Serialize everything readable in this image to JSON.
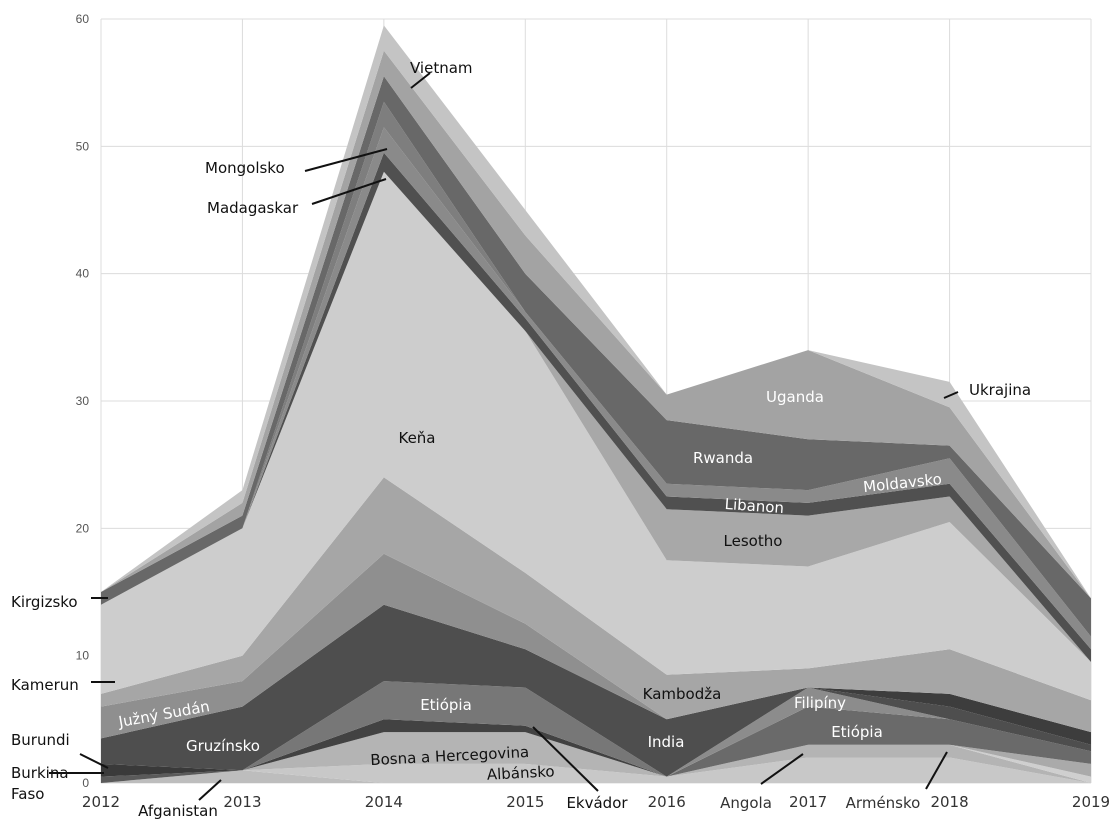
{
  "chart_data": {
    "type": "area",
    "title": "",
    "xlabel": "",
    "ylabel": "",
    "x": [
      2012,
      2013,
      2014,
      2015,
      2016,
      2017,
      2018,
      2019
    ],
    "xticks": [
      "2012",
      "2013",
      "2014",
      "2015",
      "2016",
      "2017",
      "2018",
      "2019"
    ],
    "ylim": [
      0,
      60
    ],
    "yticks": [
      "0",
      "10",
      "20",
      "30",
      "40",
      "50",
      "60"
    ],
    "grid": true,
    "legend": "none",
    "series": [
      {
        "name": "Afganistan",
        "values": [
          0,
          1,
          0,
          0,
          0,
          0,
          0,
          0
        ],
        "color": "#bdbdbd"
      },
      {
        "name": "Albánsko",
        "values": [
          0,
          0,
          1.5,
          1.5,
          0.5,
          2,
          2,
          0
        ],
        "color": "#c8c8c8"
      },
      {
        "name": "Bosna a Hercegovina",
        "values": [
          0,
          0,
          2.5,
          2.5,
          0,
          1,
          1,
          0
        ],
        "color": "#b4b4b4"
      },
      {
        "name": "Ekvádor",
        "values": [
          0,
          0,
          1,
          0.5,
          0,
          0,
          0,
          0
        ],
        "color": "#424242"
      },
      {
        "name": "Etiópia",
        "values": [
          0,
          0,
          3,
          3,
          0,
          0,
          0,
          0
        ],
        "color": "#777777"
      },
      {
        "name": "Burkina Faso",
        "values": [
          0.5,
          0,
          0,
          0,
          0,
          0,
          0,
          0
        ],
        "color": "#5a5a5a"
      },
      {
        "name": "Angola",
        "values": [
          0,
          0,
          0,
          0,
          0,
          0,
          0,
          0.5
        ],
        "color": "#cfcfcf"
      },
      {
        "name": "Arménsko",
        "values": [
          0,
          0,
          0,
          0,
          0,
          0,
          0,
          1
        ],
        "color": "#aaaaaa"
      },
      {
        "name": "Etiópia",
        "values": [
          0,
          0,
          0,
          0,
          0,
          3,
          2,
          1
        ],
        "color": "#6a6a6a"
      },
      {
        "name": "Filipíny",
        "values": [
          0,
          0,
          0,
          0,
          0,
          1.5,
          0,
          0
        ],
        "color": "#8c8c8c"
      },
      {
        "name": "Burundi",
        "values": [
          1,
          0,
          0,
          0,
          0,
          0,
          0,
          0
        ],
        "color": "#3a3a3a"
      },
      {
        "name": "Gruzínsko",
        "values": [
          2,
          5,
          6,
          3,
          4.5,
          0,
          1,
          0.5
        ],
        "color": "#4e4e4e"
      },
      {
        "name": "India",
        "values": [
          0,
          0,
          0,
          0,
          0,
          0,
          1,
          1
        ],
        "color": "#3d3d3d"
      },
      {
        "name": "Južný Sudán",
        "values": [
          2.5,
          2,
          4,
          2,
          0,
          0,
          0,
          0
        ],
        "color": "#8f8f8f"
      },
      {
        "name": "Kamerun",
        "values": [
          1,
          2,
          6,
          4,
          3.5,
          1.5,
          3.5,
          2.5
        ],
        "color": "#a6a6a6"
      },
      {
        "name": "Kambodža",
        "values": [
          0,
          0,
          0,
          0,
          0,
          0,
          0,
          0
        ],
        "color": "#b5b5b5"
      },
      {
        "name": "Kirgizsko",
        "values": [
          7,
          10,
          24,
          19,
          9,
          8,
          10,
          3
        ],
        "color": "#cdcdcd"
      },
      {
        "name": "Keňa",
        "values": [
          0,
          0,
          0,
          0,
          0,
          0,
          0,
          0
        ],
        "color": "#cdcdcd"
      },
      {
        "name": "Lesotho",
        "values": [
          0,
          0,
          0,
          0,
          4,
          4,
          2,
          0
        ],
        "color": "#a8a8a8"
      },
      {
        "name": "Libanon",
        "values": [
          0,
          0,
          1.5,
          1,
          1,
          1,
          1,
          1
        ],
        "color": "#505050"
      },
      {
        "name": "Madagaskar",
        "values": [
          0,
          0,
          2,
          0.5,
          1,
          1,
          2,
          1
        ],
        "color": "#8a8a8a"
      },
      {
        "name": "Moldavsko",
        "values": [
          0,
          0,
          2,
          0,
          0,
          0,
          0,
          0
        ],
        "color": "#7e7e7e"
      },
      {
        "name": "Mongolsko",
        "values": [
          1,
          1,
          2,
          3,
          5,
          4,
          1,
          3
        ],
        "color": "#686868"
      },
      {
        "name": "Rwanda",
        "values": [
          0,
          0,
          0,
          0,
          0,
          0,
          0,
          0
        ],
        "color": "#6f6f6f"
      },
      {
        "name": "Uganda",
        "values": [
          0,
          1,
          2,
          3,
          2,
          7,
          3,
          0
        ],
        "color": "#a3a3a3"
      },
      {
        "name": "Ukrajina",
        "values": [
          0,
          1,
          2,
          2,
          0,
          0,
          2,
          0
        ],
        "color": "#c4c4c4"
      },
      {
        "name": "Vietnam",
        "values": [
          0,
          0,
          0,
          0,
          0,
          0,
          0,
          0
        ],
        "color": "#d4d4d4"
      }
    ],
    "labels": [
      {
        "text": "Vietnam",
        "color": "#111111"
      },
      {
        "text": "Mongolsko",
        "color": "#111111"
      },
      {
        "text": "Madagaskar",
        "color": "#111111"
      },
      {
        "text": "Keňa",
        "color": "#111111"
      },
      {
        "text": "Uganda",
        "color": "#ffffff"
      },
      {
        "text": "Ukrajina",
        "color": "#111111"
      },
      {
        "text": "Rwanda",
        "color": "#ffffff"
      },
      {
        "text": "Libanon",
        "color": "#ffffff"
      },
      {
        "text": "Moldavsko",
        "color": "#ffffff"
      },
      {
        "text": "Lesotho",
        "color": "#111111"
      },
      {
        "text": "Kirgizsko",
        "color": "#111111"
      },
      {
        "text": "Kamerun",
        "color": "#111111"
      },
      {
        "text": "Kambodža",
        "color": "#111111"
      },
      {
        "text": "Filipíny",
        "color": "#ffffff"
      },
      {
        "text": "Južný Sudán",
        "color": "#ffffff"
      },
      {
        "text": "Etiópia",
        "color": "#ffffff"
      },
      {
        "text": "Etiópia",
        "color": "#ffffff"
      },
      {
        "text": "Gruzínsko",
        "color": "#ffffff"
      },
      {
        "text": "India",
        "color": "#ffffff"
      },
      {
        "text": "Burundi",
        "color": "#111111"
      },
      {
        "text": "Bosna a Hercegovina",
        "color": "#111111"
      },
      {
        "text": "Albánsko",
        "color": "#111111"
      },
      {
        "text": "Burkina",
        "color": "#111111"
      },
      {
        "text": "Faso",
        "color": "#111111"
      },
      {
        "text": "Afganistan",
        "color": "#111111"
      },
      {
        "text": "Ekvádor",
        "color": "#111111"
      },
      {
        "text": "Angola",
        "color": "#333333"
      },
      {
        "text": "Arménsko",
        "color": "#333333"
      }
    ]
  }
}
